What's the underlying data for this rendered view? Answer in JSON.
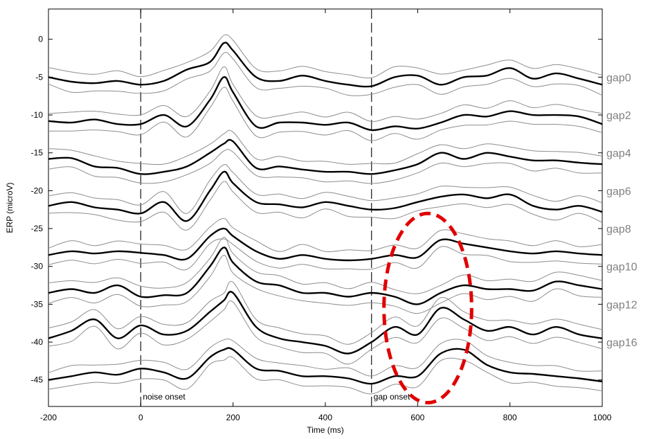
{
  "chart_data": {
    "type": "line",
    "xlabel": "Time (ms)",
    "ylabel": "ERP (microV)",
    "xlim": [
      -200,
      1000
    ],
    "ylim": [
      -48.5,
      4
    ],
    "xticks": [
      -200,
      0,
      200,
      400,
      600,
      800,
      1000
    ],
    "yticks": [
      0,
      -5,
      -10,
      -15,
      -20,
      -25,
      -30,
      -35,
      -40,
      -45
    ],
    "grid": false,
    "colors": {
      "mean": "#000000",
      "bounds": "#8c8c8c",
      "annotation": "#e00000",
      "label": "#808080"
    },
    "event_markers": [
      {
        "x": 0,
        "label": "noise onset"
      },
      {
        "x": 500,
        "label": "gap onset"
      }
    ],
    "highlight_ellipse": {
      "cx": 622,
      "cy": -35.5,
      "rx": 95,
      "ry": 12.5
    },
    "x": [
      -200,
      -150,
      -100,
      -50,
      0,
      50,
      100,
      150,
      180,
      200,
      250,
      300,
      350,
      400,
      450,
      500,
      550,
      600,
      650,
      700,
      750,
      800,
      850,
      900,
      950,
      1000
    ],
    "series": [
      {
        "name": "gap0",
        "offset": -5,
        "values": [
          -5.0,
          -5.6,
          -5.8,
          -5.5,
          -6.0,
          -5.5,
          -4.0,
          -3.0,
          -0.5,
          -1.5,
          -5.0,
          -5.5,
          -4.8,
          -5.5,
          -6.0,
          -6.2,
          -5.0,
          -4.8,
          -6.0,
          -5.0,
          -4.8,
          -3.8,
          -5.2,
          -4.5,
          -5.2,
          -6.0
        ]
      },
      {
        "name": "gap2",
        "offset": -10,
        "values": [
          -10.8,
          -11.0,
          -10.6,
          -11.2,
          -11.2,
          -10.0,
          -11.5,
          -8.0,
          -5.0,
          -7.0,
          -11.5,
          -11.0,
          -11.0,
          -11.3,
          -11.0,
          -12.0,
          -11.5,
          -11.8,
          -11.0,
          -10.0,
          -10.2,
          -9.5,
          -10.0,
          -10.0,
          -10.2,
          -11.2
        ]
      },
      {
        "name": "gap4",
        "offset": -15,
        "values": [
          -15.8,
          -15.7,
          -16.8,
          -17.0,
          -17.8,
          -17.5,
          -16.8,
          -15.0,
          -13.8,
          -13.5,
          -17.0,
          -16.8,
          -17.2,
          -17.5,
          -17.5,
          -17.8,
          -17.3,
          -16.5,
          -15.0,
          -15.8,
          -15.0,
          -15.5,
          -16.0,
          -16.0,
          -16.3,
          -16.5
        ]
      },
      {
        "name": "gap6",
        "offset": -20,
        "values": [
          -22.0,
          -21.5,
          -22.2,
          -22.5,
          -23.0,
          -21.5,
          -24.0,
          -20.0,
          -17.5,
          -19.0,
          -21.5,
          -21.8,
          -22.2,
          -21.5,
          -22.0,
          -22.5,
          -22.3,
          -21.5,
          -20.8,
          -20.5,
          -21.0,
          -20.5,
          -22.0,
          -22.5,
          -22.0,
          -22.8
        ]
      },
      {
        "name": "gap8",
        "offset": -25,
        "values": [
          -28.5,
          -28.0,
          -28.3,
          -28.0,
          -28.2,
          -28.5,
          -29.0,
          -26.0,
          -25.0,
          -26.0,
          -28.0,
          -29.0,
          -28.5,
          -29.0,
          -29.2,
          -29.0,
          -28.5,
          -28.8,
          -26.5,
          -27.0,
          -27.5,
          -28.0,
          -28.3,
          -28.0,
          -28.3,
          -28.5
        ]
      },
      {
        "name": "gap10",
        "offset": -30,
        "values": [
          -33.5,
          -33.0,
          -33.5,
          -32.5,
          -34.0,
          -33.8,
          -33.5,
          -30.0,
          -27.5,
          -29.5,
          -32.0,
          -32.5,
          -33.5,
          -33.5,
          -34.0,
          -33.5,
          -34.0,
          -35.0,
          -33.5,
          -32.5,
          -33.0,
          -33.0,
          -33.2,
          -32.0,
          -32.5,
          -33.0
        ]
      },
      {
        "name": "gap12",
        "offset": -35,
        "values": [
          -39.5,
          -38.5,
          -37.0,
          -39.5,
          -37.8,
          -39.0,
          -38.5,
          -36.0,
          -34.5,
          -33.5,
          -38.0,
          -39.5,
          -40.0,
          -40.5,
          -41.5,
          -40.0,
          -38.0,
          -39.0,
          -35.5,
          -37.0,
          -38.5,
          -38.0,
          -39.0,
          -38.0,
          -39.0,
          -39.5
        ]
      },
      {
        "name": "gap16",
        "offset": -40,
        "values": [
          -45.0,
          -44.5,
          -44.0,
          -44.3,
          -43.5,
          -44.0,
          -44.8,
          -42.0,
          -41.0,
          -41.0,
          -43.5,
          -43.8,
          -44.5,
          -44.5,
          -44.8,
          -45.5,
          -44.5,
          -44.5,
          -41.5,
          -41.0,
          -43.0,
          -44.0,
          -44.2,
          -44.5,
          -44.8,
          -45.2
        ]
      }
    ]
  }
}
